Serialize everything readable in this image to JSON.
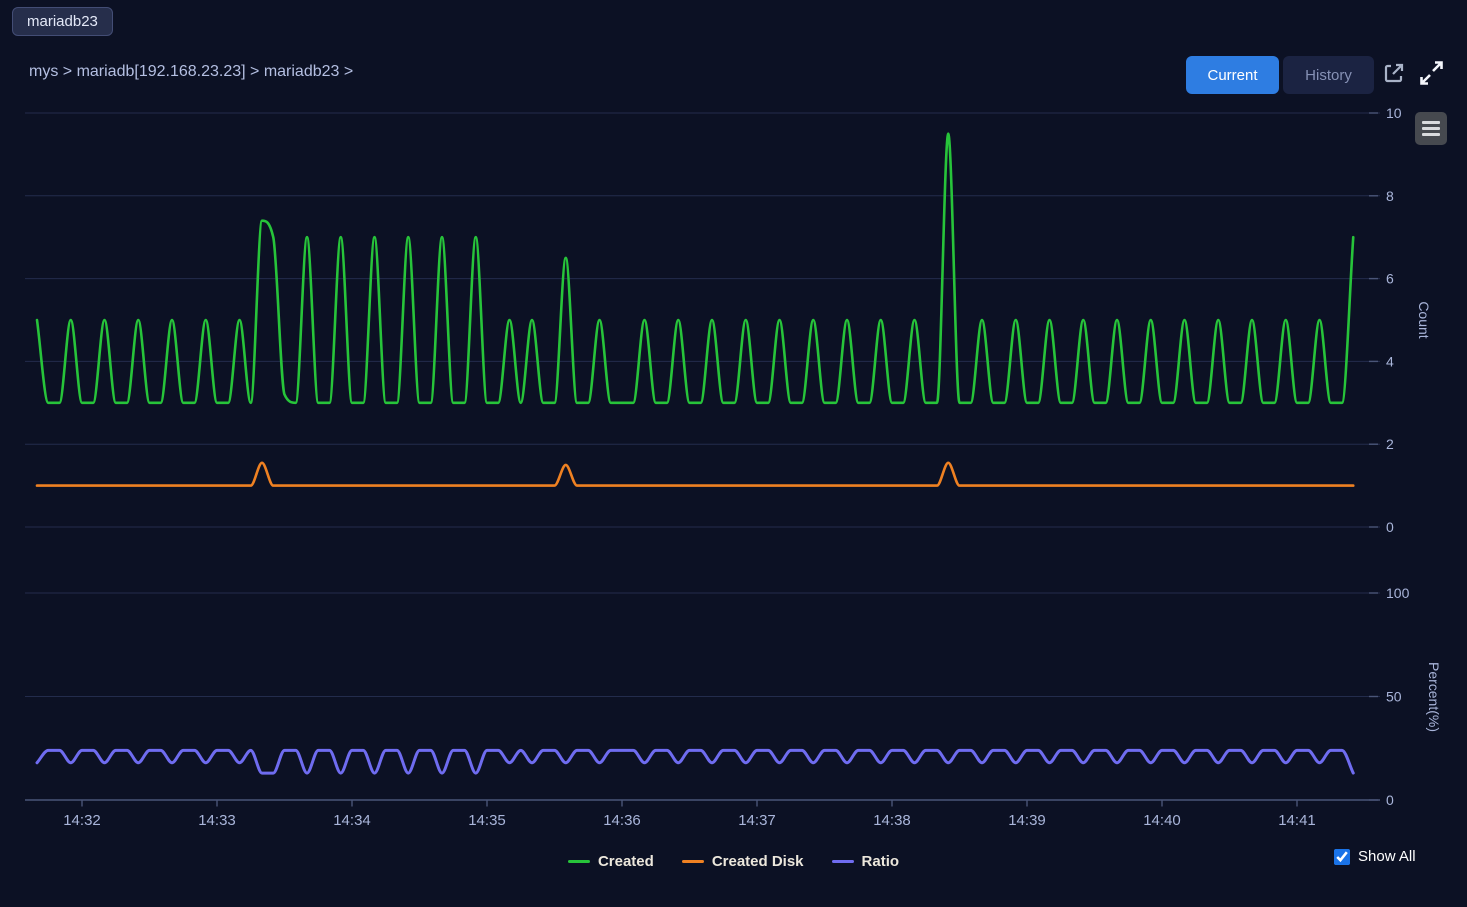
{
  "tab": {
    "label": "mariadb23"
  },
  "breadcrumb": {
    "path": "mys > mariadb[192.168.23.23] > mariadb23 >"
  },
  "toolbar": {
    "current": "Current",
    "history": "History",
    "icons": [
      "open-in-new-window-icon",
      "expand-fullscreen-icon",
      "chart-context-menu-icon"
    ]
  },
  "controls": {
    "show_all": "Show All",
    "show_all_checked": true
  },
  "colors": {
    "background": "#0c1124",
    "accent_blue": "#2e7de2",
    "gridline": "#232c4c",
    "axis_line": "#4a5578",
    "axis_text": "#a9b5da",
    "legend_text": "#ece7dc",
    "series_created": "#27c43a",
    "series_created_disk": "#ef8122",
    "series_ratio": "#6f6cf0"
  },
  "chart_data": {
    "type": "line",
    "title": "",
    "grid": "horizontal",
    "x_axis": {
      "tick_labels": [
        "14:32",
        "14:33",
        "14:34",
        "14:35",
        "14:36",
        "14:37",
        "14:38",
        "14:39",
        "14:40",
        "14:41"
      ],
      "tick_interval_seconds": 60,
      "time_start_offset_seconds": -20,
      "time_step_seconds": 5
    },
    "y_axes": [
      {
        "title": "Count",
        "ticks": [
          0,
          2,
          4,
          6,
          8,
          10
        ],
        "range": [
          0,
          10
        ],
        "position": "right"
      },
      {
        "title": "Percent(%)",
        "ticks": [
          0,
          50,
          100
        ],
        "range": [
          0,
          100
        ],
        "position": "right"
      }
    ],
    "legend": {
      "position": "bottom-center",
      "entries": [
        "Created",
        "Created Disk",
        "Ratio"
      ]
    },
    "series": [
      {
        "name": "Created",
        "color": "#27c43a",
        "y_axis": "Count",
        "values": [
          5,
          3,
          3,
          5,
          3,
          3,
          5,
          3,
          3,
          5,
          3,
          3,
          5,
          3,
          3,
          5,
          3,
          3,
          5,
          3,
          7.4,
          7,
          3.2,
          3,
          7,
          3,
          3,
          7,
          3,
          3,
          7,
          3,
          3,
          7,
          3,
          3,
          7,
          3,
          3,
          7,
          3,
          3,
          5,
          3,
          5,
          3,
          3,
          6.5,
          3,
          3,
          5,
          3,
          3,
          3,
          5,
          3,
          3,
          5,
          3,
          3,
          5,
          3,
          3,
          5,
          3,
          3,
          5,
          3,
          3,
          5,
          3,
          3,
          5,
          3,
          3,
          5,
          3,
          3,
          5,
          3,
          3,
          9.5,
          3,
          3,
          5,
          3,
          3,
          5,
          3,
          3,
          5,
          3,
          3,
          5,
          3,
          3,
          5,
          3,
          3,
          5,
          3,
          3,
          5,
          3,
          3,
          5,
          3,
          3,
          5,
          3,
          3,
          5,
          3,
          3,
          5,
          3,
          3,
          7
        ]
      },
      {
        "name": "Created Disk",
        "color": "#ef8122",
        "y_axis": "Count",
        "values": [
          1,
          1,
          1,
          1,
          1,
          1,
          1,
          1,
          1,
          1,
          1,
          1,
          1,
          1,
          1,
          1,
          1,
          1,
          1,
          1,
          1.55,
          1,
          1,
          1,
          1,
          1,
          1,
          1,
          1,
          1,
          1,
          1,
          1,
          1,
          1,
          1,
          1,
          1,
          1,
          1,
          1,
          1,
          1,
          1,
          1,
          1,
          1,
          1.5,
          1,
          1,
          1,
          1,
          1,
          1,
          1,
          1,
          1,
          1,
          1,
          1,
          1,
          1,
          1,
          1,
          1,
          1,
          1,
          1,
          1,
          1,
          1,
          1,
          1,
          1,
          1,
          1,
          1,
          1,
          1,
          1,
          1,
          1.55,
          1,
          1,
          1,
          1,
          1,
          1,
          1,
          1,
          1,
          1,
          1,
          1,
          1,
          1,
          1,
          1,
          1,
          1,
          1,
          1,
          1,
          1,
          1,
          1,
          1,
          1,
          1,
          1,
          1,
          1,
          1,
          1,
          1,
          1,
          1,
          1
        ]
      },
      {
        "name": "Ratio",
        "color": "#6f6cf0",
        "y_axis": "Percent(%)",
        "values": [
          18,
          24,
          24,
          18,
          24,
          24,
          18,
          24,
          24,
          18,
          24,
          24,
          18,
          24,
          24,
          18,
          24,
          24,
          18,
          24,
          13,
          13,
          24,
          24,
          13,
          24,
          24,
          13,
          24,
          24,
          13,
          24,
          24,
          13,
          24,
          24,
          13,
          24,
          24,
          13,
          24,
          24,
          18,
          24,
          18,
          24,
          24,
          18,
          24,
          24,
          18,
          24,
          24,
          24,
          18,
          24,
          24,
          18,
          24,
          24,
          18,
          24,
          24,
          18,
          24,
          24,
          18,
          24,
          24,
          18,
          24,
          24,
          18,
          24,
          24,
          18,
          24,
          24,
          18,
          24,
          24,
          18,
          24,
          24,
          18,
          24,
          24,
          18,
          24,
          24,
          18,
          24,
          24,
          18,
          24,
          24,
          18,
          24,
          24,
          18,
          24,
          24,
          18,
          24,
          24,
          18,
          24,
          24,
          18,
          24,
          24,
          18,
          24,
          24,
          18,
          24,
          24,
          13
        ]
      }
    ]
  }
}
